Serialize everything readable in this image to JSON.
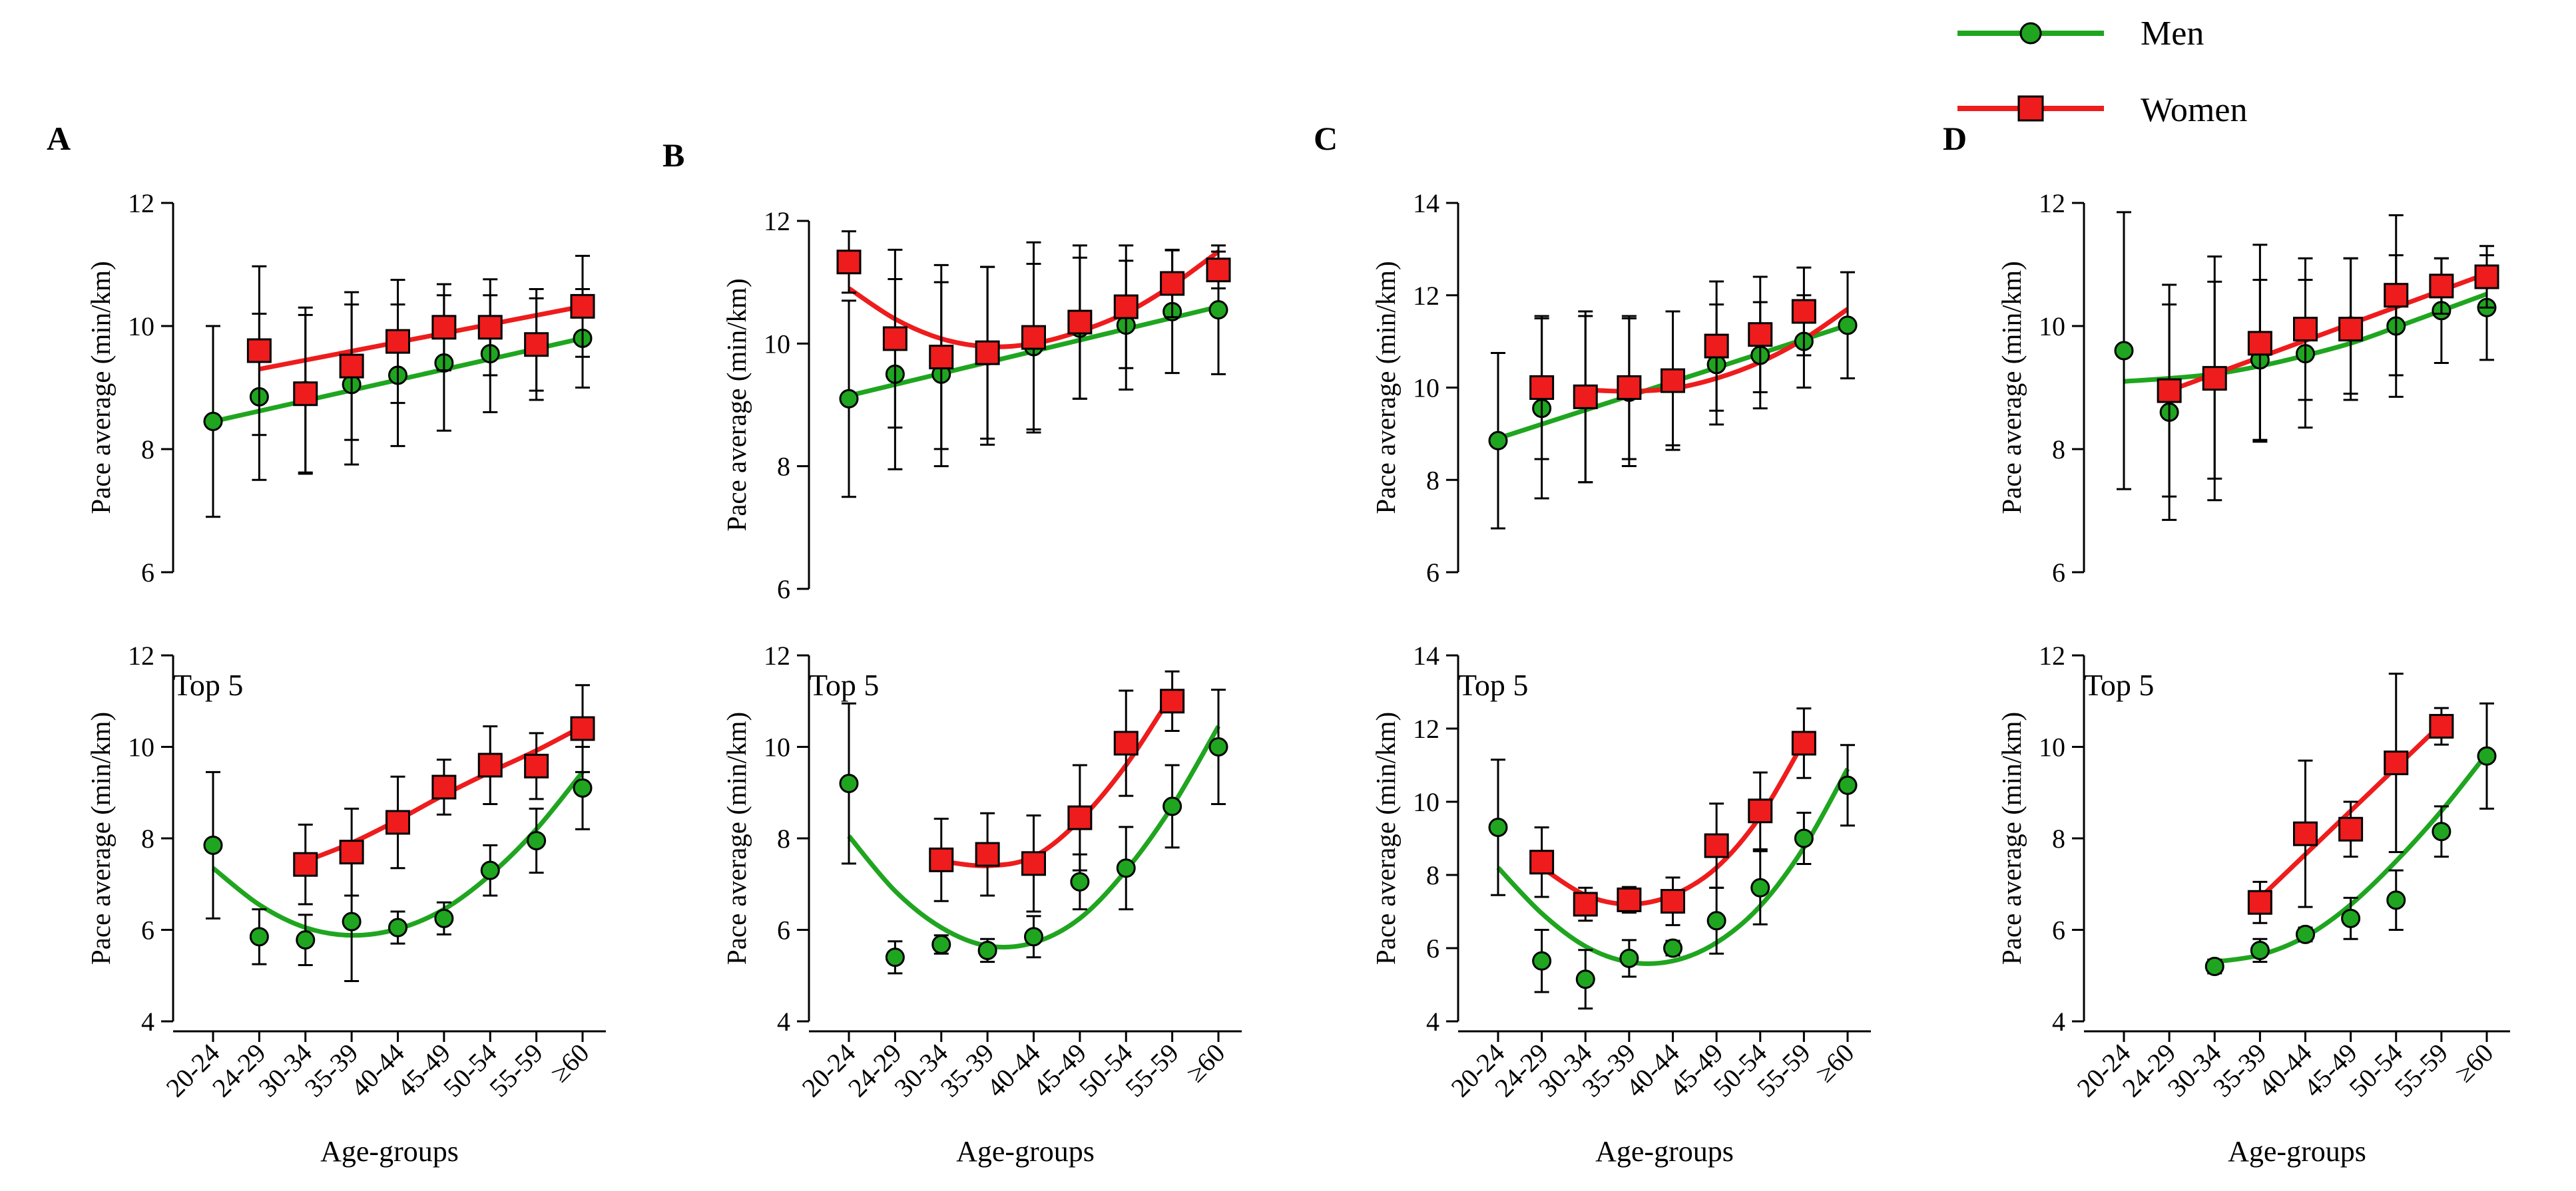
{
  "legend": {
    "men": {
      "label": "Men",
      "color": "#1fa51f"
    },
    "women": {
      "label": "Women",
      "color": "#ee1c1c"
    }
  },
  "chart_data": [
    {
      "panel": "A",
      "row": "all",
      "type": "line",
      "title": "",
      "xlabel": "",
      "ylabel": "Pace average (min/km)",
      "categories": [
        "20-24",
        "24-29",
        "30-34",
        "35-39",
        "40-44",
        "45-49",
        "50-54",
        "55-59",
        "≥60"
      ],
      "ylim": [
        6,
        12
      ],
      "yticks": [
        6,
        8,
        10,
        12
      ],
      "series": [
        {
          "name": "Men",
          "values": [
            8.45,
            8.85,
            8.95,
            9.05,
            9.2,
            9.4,
            9.55,
            9.7,
            9.8
          ],
          "err": [
            1.55,
            1.35,
            1.35,
            1.3,
            1.15,
            1.1,
            0.95,
            0.9,
            0.8
          ],
          "fit": [
            8.45,
            9.8
          ]
        },
        {
          "name": "Women",
          "values": [
            null,
            9.6,
            8.9,
            9.35,
            9.75,
            9.98,
            9.98,
            9.7,
            10.32
          ],
          "err": [
            null,
            1.37,
            1.28,
            1.2,
            1.0,
            0.7,
            0.78,
            0.75,
            0.82
          ],
          "fit": [
            9.3,
            10.32
          ]
        }
      ]
    },
    {
      "panel": "B",
      "row": "all",
      "type": "line",
      "title": "",
      "xlabel": "",
      "ylabel": "Pace average (min/km)",
      "categories": [
        "20-24",
        "24-29",
        "30-34",
        "35-39",
        "40-44",
        "45-49",
        "50-54",
        "55-59",
        "≥60"
      ],
      "ylim": [
        6,
        12
      ],
      "yticks": [
        6,
        8,
        10,
        12
      ],
      "series": [
        {
          "name": "Men",
          "values": [
            9.1,
            9.5,
            9.5,
            9.8,
            9.95,
            10.25,
            10.3,
            10.52,
            10.55
          ],
          "err": [
            1.6,
            1.55,
            1.5,
            1.45,
            1.35,
            1.15,
            1.05,
            1.0,
            1.05
          ],
          "fit": [
            9.15,
            10.6
          ]
        },
        {
          "name": "Women",
          "values": [
            11.33,
            10.08,
            9.78,
            9.85,
            10.1,
            10.35,
            10.6,
            10.98,
            11.2
          ],
          "err": [
            0.5,
            1.45,
            1.5,
            1.4,
            1.55,
            1.25,
            1.0,
            0.55,
            0.3
          ],
          "fit": [
            10.9,
            10.4,
            10.08,
            9.95,
            10.0,
            10.2,
            10.5,
            10.95,
            11.5
          ]
        }
      ]
    },
    {
      "panel": "C",
      "row": "all",
      "type": "line",
      "title": "",
      "xlabel": "",
      "ylabel": "Pace average (min/km)",
      "categories": [
        "20-24",
        "24-29",
        "30-34",
        "35-39",
        "40-44",
        "45-49",
        "50-54",
        "55-59",
        "≥60"
      ],
      "ylim": [
        6,
        14
      ],
      "yticks": [
        6,
        8,
        10,
        12,
        14
      ],
      "series": [
        {
          "name": "Men",
          "values": [
            8.85,
            9.55,
            9.75,
            9.9,
            10.2,
            10.5,
            10.7,
            11.0,
            11.35
          ],
          "err": [
            1.9,
            1.95,
            1.8,
            1.6,
            1.45,
            1.3,
            1.15,
            1.0,
            1.15
          ],
          "fit": [
            8.9,
            11.35
          ]
        },
        {
          "name": "Women",
          "values": [
            null,
            10.0,
            9.8,
            10.0,
            10.15,
            10.9,
            11.15,
            11.65,
            null
          ],
          "err": [
            null,
            1.55,
            1.85,
            1.55,
            1.5,
            1.4,
            1.25,
            0.95,
            null
          ],
          "fit": [
            9.95,
            9.92,
            9.98,
            10.2,
            10.55,
            11.05,
            11.7
          ]
        }
      ]
    },
    {
      "panel": "D",
      "row": "all",
      "type": "line",
      "title": "",
      "xlabel": "",
      "ylabel": "Pace average (min/km)",
      "categories": [
        "20-24",
        "24-29",
        "30-34",
        "35-39",
        "40-44",
        "45-49",
        "50-54",
        "55-59",
        "≥60"
      ],
      "ylim": [
        6,
        12
      ],
      "yticks": [
        6,
        8,
        10,
        12
      ],
      "series": [
        {
          "name": "Men",
          "values": [
            9.6,
            8.6,
            9.12,
            9.45,
            9.55,
            10.0,
            10.0,
            10.25,
            10.3
          ],
          "err": [
            2.25,
            1.75,
            1.6,
            1.3,
            1.2,
            1.1,
            1.15,
            0.85,
            0.85
          ],
          "fit": [
            9.1,
            9.15,
            9.22,
            9.35,
            9.52,
            9.72,
            9.98,
            10.25,
            10.52
          ]
        },
        {
          "name": "Women",
          "values": [
            null,
            8.95,
            9.15,
            9.72,
            9.95,
            9.95,
            10.5,
            10.65,
            10.8
          ],
          "err": [
            null,
            1.72,
            1.98,
            1.6,
            1.15,
            1.15,
            1.3,
            0.45,
            0.5
          ],
          "fit": [
            8.95,
            10.85
          ]
        }
      ]
    },
    {
      "panel": "A",
      "row": "top5",
      "type": "line",
      "title": "Top 5",
      "xlabel": "Age-groups",
      "ylabel": "Pace average (min/km)",
      "categories": [
        "20-24",
        "24-29",
        "30-34",
        "35-39",
        "40-44",
        "45-49",
        "50-54",
        "55-59",
        "≥60"
      ],
      "ylim": [
        4,
        12
      ],
      "yticks": [
        4,
        6,
        8,
        10,
        12
      ],
      "series": [
        {
          "name": "Men",
          "values": [
            7.85,
            5.85,
            5.78,
            6.18,
            6.05,
            6.25,
            7.3,
            7.95,
            9.1
          ],
          "err": [
            1.6,
            0.6,
            0.55,
            1.3,
            0.35,
            0.35,
            0.55,
            0.7,
            0.9
          ],
          "fit": [
            7.35,
            6.55,
            6.05,
            5.88,
            6.02,
            6.45,
            7.2,
            8.2,
            9.45
          ]
        },
        {
          "name": "Women",
          "values": [
            null,
            null,
            7.43,
            7.7,
            8.35,
            9.12,
            9.6,
            9.58,
            10.4
          ],
          "err": [
            null,
            null,
            0.87,
            0.95,
            1.0,
            0.6,
            0.85,
            0.72,
            0.95
          ],
          "fit": [
            null,
            null,
            7.5,
            7.9,
            8.4,
            8.95,
            9.45,
            9.92,
            10.45
          ]
        }
      ]
    },
    {
      "panel": "B",
      "row": "top5",
      "type": "line",
      "title": "Top 5",
      "xlabel": "Age-groups",
      "ylabel": "Pace average (min/km)",
      "categories": [
        "20-24",
        "24-29",
        "30-34",
        "35-39",
        "40-44",
        "45-49",
        "50-54",
        "55-59",
        "≥60"
      ],
      "ylim": [
        4,
        12
      ],
      "yticks": [
        4,
        6,
        8,
        10,
        12
      ],
      "series": [
        {
          "name": "Men",
          "values": [
            9.2,
            5.4,
            5.68,
            5.55,
            5.85,
            7.05,
            7.35,
            8.7,
            10.0
          ],
          "err": [
            1.75,
            0.35,
            0.2,
            0.25,
            0.45,
            0.6,
            0.9,
            0.9,
            1.25
          ],
          "fit": [
            8.05,
            6.85,
            6.05,
            5.65,
            5.72,
            6.25,
            7.3,
            8.7,
            10.45
          ]
        },
        {
          "name": "Women",
          "values": [
            null,
            null,
            7.53,
            7.65,
            7.45,
            8.45,
            10.08,
            11.0,
            null
          ],
          "err": [
            null,
            null,
            0.9,
            0.9,
            1.05,
            1.15,
            1.15,
            0.65,
            null
          ],
          "fit": [
            null,
            null,
            7.5,
            7.4,
            7.6,
            8.4,
            9.6,
            11.15,
            null
          ]
        }
      ]
    },
    {
      "panel": "C",
      "row": "top5",
      "type": "line",
      "title": "Top 5",
      "xlabel": "Age-groups",
      "ylabel": "Pace average (min/km)",
      "categories": [
        "20-24",
        "24-29",
        "30-34",
        "35-39",
        "40-44",
        "45-49",
        "50-54",
        "55-59",
        "≥60"
      ],
      "ylim": [
        4,
        14
      ],
      "yticks": [
        4,
        6,
        8,
        10,
        12,
        14
      ],
      "series": [
        {
          "name": "Men",
          "values": [
            9.3,
            5.65,
            5.15,
            5.72,
            6.0,
            6.75,
            7.65,
            9.0,
            10.45
          ],
          "err": [
            1.85,
            0.85,
            0.8,
            0.5,
            0.2,
            0.9,
            1.0,
            0.7,
            1.1
          ],
          "fit": [
            8.2,
            6.95,
            6.05,
            5.62,
            5.65,
            6.15,
            7.15,
            8.75,
            10.9
          ]
        },
        {
          "name": "Women",
          "values": [
            null,
            8.35,
            7.2,
            7.32,
            7.28,
            8.8,
            9.75,
            11.6,
            null
          ],
          "err": [
            null,
            0.95,
            0.45,
            0.35,
            0.65,
            1.15,
            1.05,
            0.95,
            null
          ],
          "fit": [
            null,
            8.2,
            7.45,
            7.2,
            7.45,
            8.2,
            9.6,
            11.65,
            null
          ]
        }
      ]
    },
    {
      "panel": "D",
      "row": "top5",
      "type": "line",
      "title": "Top 5",
      "xlabel": "Age-groups",
      "ylabel": "Pace average (min/km)",
      "categories": [
        "20-24",
        "24-29",
        "30-34",
        "35-39",
        "40-44",
        "45-49",
        "50-54",
        "55-59",
        "≥60"
      ],
      "ylim": [
        4,
        12
      ],
      "yticks": [
        4,
        6,
        8,
        10,
        12
      ],
      "series": [
        {
          "name": "Men",
          "values": [
            null,
            null,
            5.2,
            5.55,
            5.9,
            6.25,
            6.65,
            8.15,
            9.8
          ],
          "err": [
            null,
            null,
            0.15,
            0.25,
            0.15,
            0.45,
            0.65,
            0.55,
            1.15
          ],
          "fit": [
            null,
            null,
            5.3,
            5.45,
            5.85,
            6.55,
            7.5,
            8.6,
            9.85
          ]
        },
        {
          "name": "Women",
          "values": [
            null,
            null,
            null,
            6.6,
            8.1,
            8.2,
            9.65,
            10.45,
            null
          ],
          "err": [
            null,
            null,
            null,
            0.45,
            1.6,
            0.6,
            1.95,
            0.4,
            null
          ],
          "fit": [
            null,
            null,
            null,
            6.7,
            7.65,
            8.6,
            9.55,
            10.5,
            null
          ]
        }
      ]
    }
  ]
}
